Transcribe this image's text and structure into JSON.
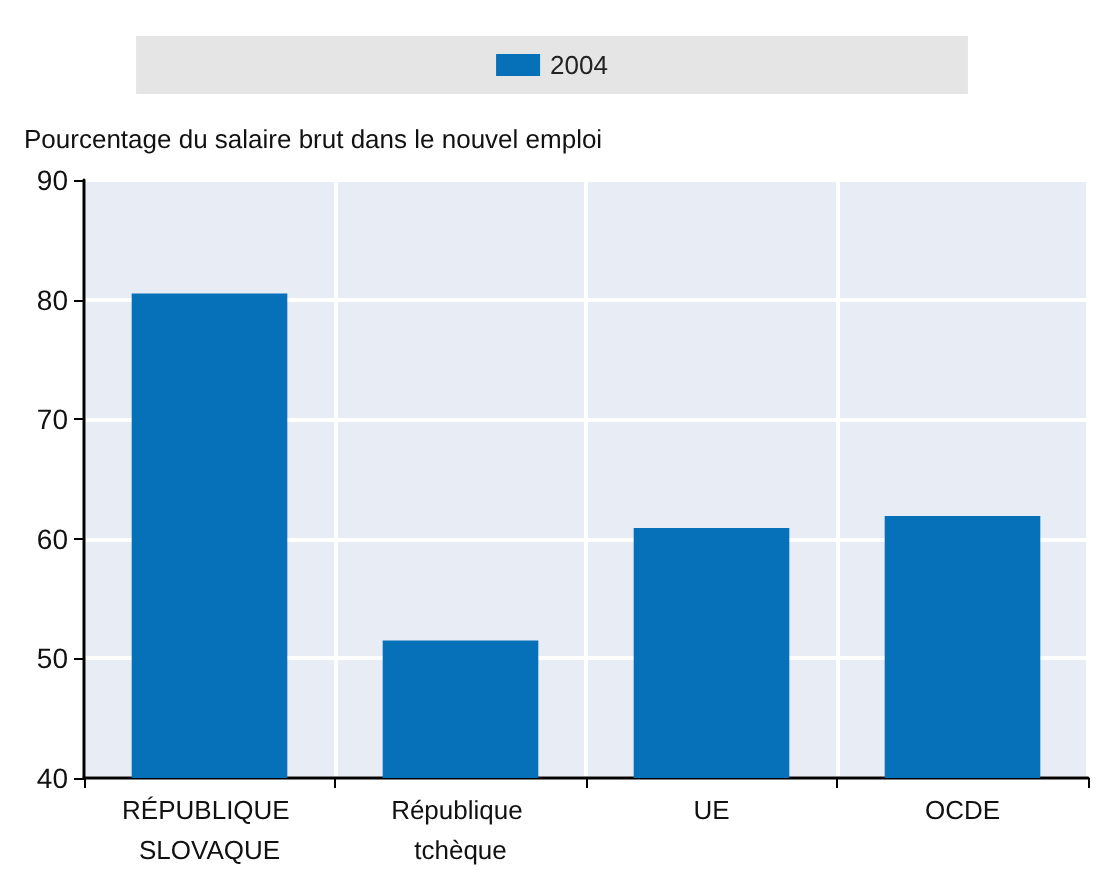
{
  "chart_data": {
    "type": "bar",
    "ylabel": "Pourcentage du salaire brut dans le nouvel emploi",
    "categories": [
      "RÉPUBLIQUE SLOVAQUE",
      "République tchèque",
      "UE",
      "OCDE"
    ],
    "series": [
      {
        "name": "2004",
        "color": "#0670b9",
        "values": [
          80.5,
          51.5,
          60.9,
          61.9
        ]
      }
    ],
    "ylim": [
      40,
      90
    ],
    "yticks": [
      40,
      50,
      60,
      70,
      80,
      90
    ],
    "grid": true,
    "legend": "top"
  }
}
